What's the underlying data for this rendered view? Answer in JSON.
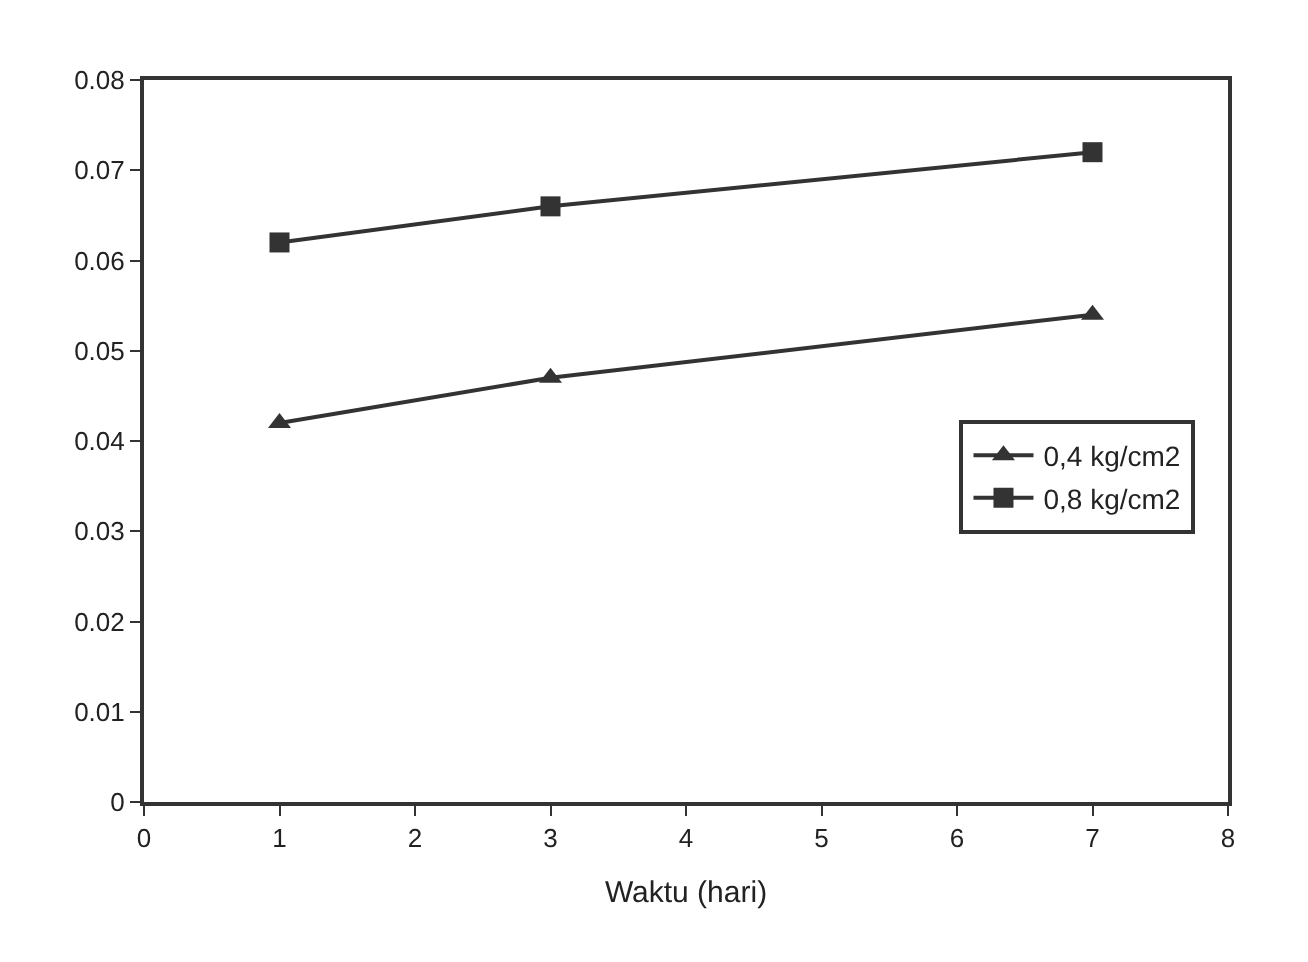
{
  "chart_data": {
    "type": "line",
    "xlabel": "Waktu (hari)",
    "xlim": [
      0,
      8
    ],
    "xticks": [
      0,
      1,
      2,
      3,
      4,
      5,
      6,
      7,
      8
    ],
    "ylim": [
      0,
      0.08
    ],
    "yticks": [
      0,
      0.01,
      0.02,
      0.03,
      0.04,
      0.05,
      0.06,
      0.07,
      0.08
    ],
    "x": [
      1,
      3,
      7
    ],
    "legend": "right",
    "series": [
      {
        "name": "0,4 kg/cm2",
        "color": "#333333",
        "marker": "triangle",
        "values": [
          0.042,
          0.047,
          0.054
        ]
      },
      {
        "name": "0,8 kg/cm2",
        "color": "#333333",
        "marker": "square",
        "values": [
          0.062,
          0.066,
          0.072
        ]
      }
    ]
  }
}
